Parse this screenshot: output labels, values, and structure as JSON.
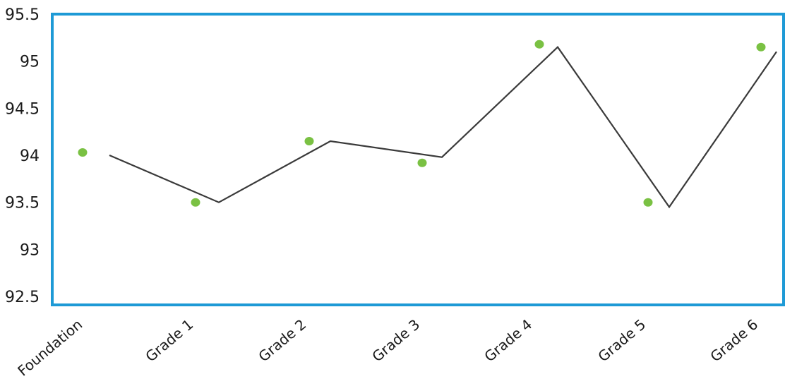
{
  "chart_data": {
    "type": "line",
    "categories": [
      "Foundation",
      "Grade 1",
      "Grade 2",
      "Grade 3",
      "Grade 4",
      "Grade 5",
      "Grade 6"
    ],
    "series": [
      {
        "values": [
          94.0,
          93.5,
          94.15,
          93.98,
          95.15,
          93.45,
          95.1
        ],
        "color": "#3a3a3a"
      },
      {
        "values": [
          94.03,
          93.5,
          94.15,
          93.92,
          95.18,
          93.5,
          95.15
        ],
        "color": "#7ac143",
        "style": "markers"
      }
    ],
    "yticks": [
      "95.5",
      "95",
      "94.5",
      "94",
      "93.5",
      "93",
      "92.5"
    ],
    "ylim": [
      92.5,
      95.5
    ],
    "grid": false,
    "frame_color": "#1e9ad6"
  }
}
